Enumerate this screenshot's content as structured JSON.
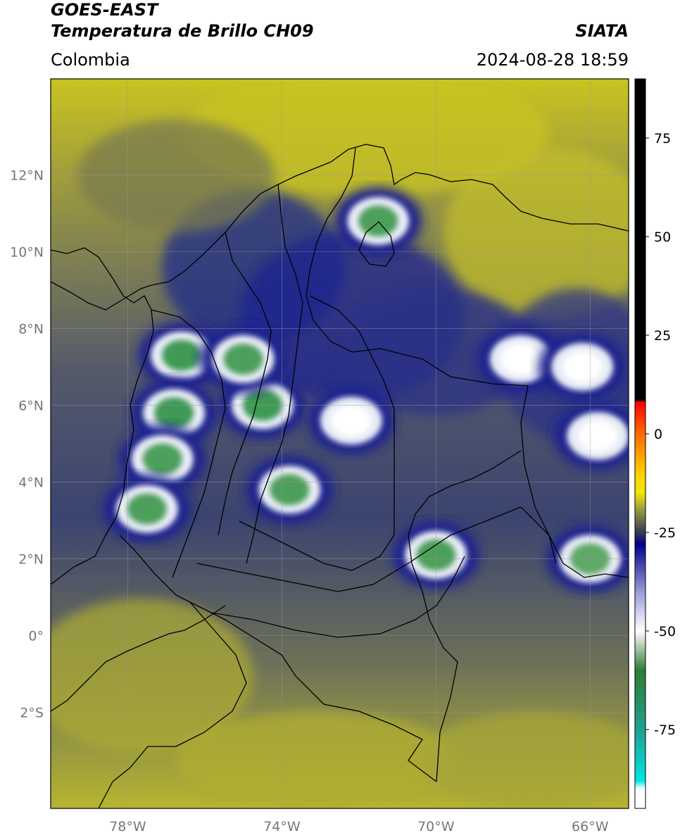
{
  "header": {
    "satellite": "GOES-EAST",
    "product": "Temperatura de Brillo CH09",
    "region": "Colombia",
    "agency": "SIATA",
    "timestamp": "2024-08-28 18:59"
  },
  "map": {
    "lon_range": [
      -80,
      -65
    ],
    "lat_range": [
      -4.5,
      14.5
    ],
    "lon_ticks": [
      {
        "value": -78,
        "label": "78°W"
      },
      {
        "value": -74,
        "label": "74°W"
      },
      {
        "value": -70,
        "label": "70°W"
      },
      {
        "value": -66,
        "label": "66°W"
      }
    ],
    "lat_ticks": [
      {
        "value": 12,
        "label": "12°N"
      },
      {
        "value": 10,
        "label": "10°N"
      },
      {
        "value": 8,
        "label": "8°N"
      },
      {
        "value": 6,
        "label": "6°N"
      },
      {
        "value": 4,
        "label": "4°N"
      },
      {
        "value": 2,
        "label": "2°N"
      },
      {
        "value": 0,
        "label": "0°"
      },
      {
        "value": -2,
        "label": "2°S"
      }
    ],
    "grid": true,
    "background_color": "#8b8b47",
    "gradient_colors": [
      "#c9c420",
      "#8c8b4a",
      "#555a6a",
      "#3b4470",
      "#6d7058",
      "#b6b530"
    ],
    "storms": [
      {
        "lon": -76.6,
        "lat": 7.3,
        "core": "#3f9a55"
      },
      {
        "lon": -76.8,
        "lat": 5.8,
        "core": "#3f9a55"
      },
      {
        "lon": -74.5,
        "lat": 6.0,
        "core": "#3f9a55"
      },
      {
        "lon": -75.0,
        "lat": 7.2,
        "core": "#4e9f5c"
      },
      {
        "lon": -73.8,
        "lat": 3.8,
        "core": "#4e9f5c"
      },
      {
        "lon": -77.1,
        "lat": 4.6,
        "core": "#4e9f5c"
      },
      {
        "lon": -77.5,
        "lat": 3.3,
        "core": "#4e9f5c"
      },
      {
        "lon": -71.5,
        "lat": 10.8,
        "core": "#4e9f5c"
      },
      {
        "lon": -70.0,
        "lat": 2.1,
        "core": "#4e9f5c"
      },
      {
        "lon": -66.0,
        "lat": 2.0,
        "core": "#5ea868"
      },
      {
        "lon": -67.8,
        "lat": 7.2,
        "core": "#ffffff"
      },
      {
        "lon": -66.2,
        "lat": 7.0,
        "core": "#ffffff"
      },
      {
        "lon": -65.8,
        "lat": 5.2,
        "core": "#ffffff"
      },
      {
        "lon": -72.2,
        "lat": 5.6,
        "core": "#ffffff"
      }
    ],
    "coastline_color": "#000000"
  },
  "colorbar": {
    "min": -95,
    "max": 90,
    "ticks": [
      {
        "value": 75,
        "label": "75"
      },
      {
        "value": 50,
        "label": "50"
      },
      {
        "value": 25,
        "label": "25"
      },
      {
        "value": 0,
        "label": "0"
      },
      {
        "value": -25,
        "label": "-25"
      },
      {
        "value": -50,
        "label": "-50"
      },
      {
        "value": -75,
        "label": "-75"
      }
    ],
    "stops": [
      {
        "value": 90,
        "color": "#000000"
      },
      {
        "value": 8.5,
        "color": "#000000"
      },
      {
        "value": 8,
        "color": "#ff0000"
      },
      {
        "value": 0,
        "color": "#ff6a00"
      },
      {
        "value": -10,
        "color": "#ffd000"
      },
      {
        "value": -15,
        "color": "#f2e60a"
      },
      {
        "value": -20,
        "color": "#8c8c45"
      },
      {
        "value": -25,
        "color": "#3a3a55"
      },
      {
        "value": -28,
        "color": "#00008b"
      },
      {
        "value": -40,
        "color": "#9a9ad8"
      },
      {
        "value": -50,
        "color": "#ffffff"
      },
      {
        "value": -60,
        "color": "#2e7d32"
      },
      {
        "value": -75,
        "color": "#20a090"
      },
      {
        "value": -88,
        "color": "#00e5e5"
      },
      {
        "value": -90,
        "color": "#ffffff"
      },
      {
        "value": -95,
        "color": "#ffffff"
      }
    ]
  }
}
